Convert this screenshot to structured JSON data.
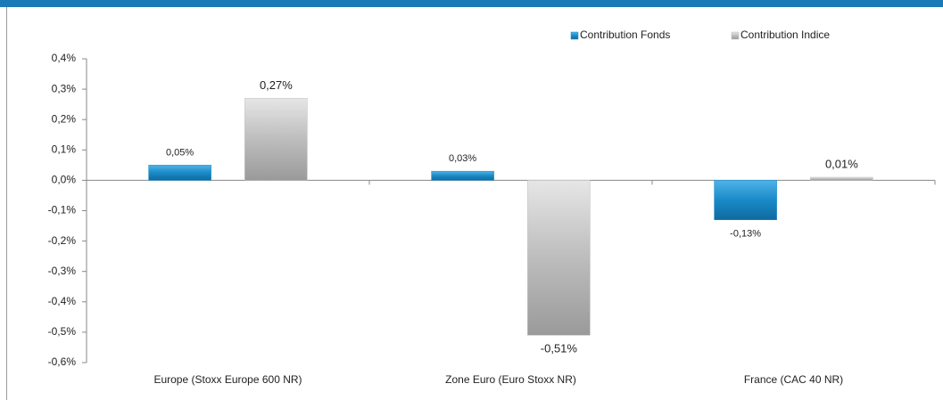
{
  "chart_data": {
    "type": "bar",
    "categories": [
      "Europe (Stoxx Europe 600 NR)",
      "Zone Euro (Euro Stoxx NR)",
      "France (CAC 40 NR)"
    ],
    "series": [
      {
        "name": "Contribution Fonds",
        "color": "#1a8ac8",
        "values": [
          0.05,
          0.03,
          -0.13
        ],
        "value_labels": [
          "0,05%",
          "0,03%",
          "-0,13%"
        ]
      },
      {
        "name": "Contribution Indice",
        "color": "#bdbdbd",
        "values": [
          0.27,
          -0.51,
          0.01
        ],
        "value_labels": [
          "0,27%",
          "-0,51%",
          "0,01%"
        ]
      }
    ],
    "ylim": [
      -0.6,
      0.4
    ],
    "yticks": [
      {
        "value": -0.6,
        "label": "-0,6%"
      },
      {
        "value": -0.5,
        "label": "-0,5%"
      },
      {
        "value": -0.4,
        "label": "-0,4%"
      },
      {
        "value": -0.3,
        "label": "-0,3%"
      },
      {
        "value": -0.2,
        "label": "-0,2%"
      },
      {
        "value": -0.1,
        "label": "-0,1%"
      },
      {
        "value": 0,
        "label": "0,0%"
      },
      {
        "value": 0.1,
        "label": "0,1%"
      },
      {
        "value": 0.2,
        "label": "0,2%"
      },
      {
        "value": 0.3,
        "label": "0,3%"
      },
      {
        "value": 0.4,
        "label": "0,4%"
      }
    ],
    "legend": "top-right"
  }
}
